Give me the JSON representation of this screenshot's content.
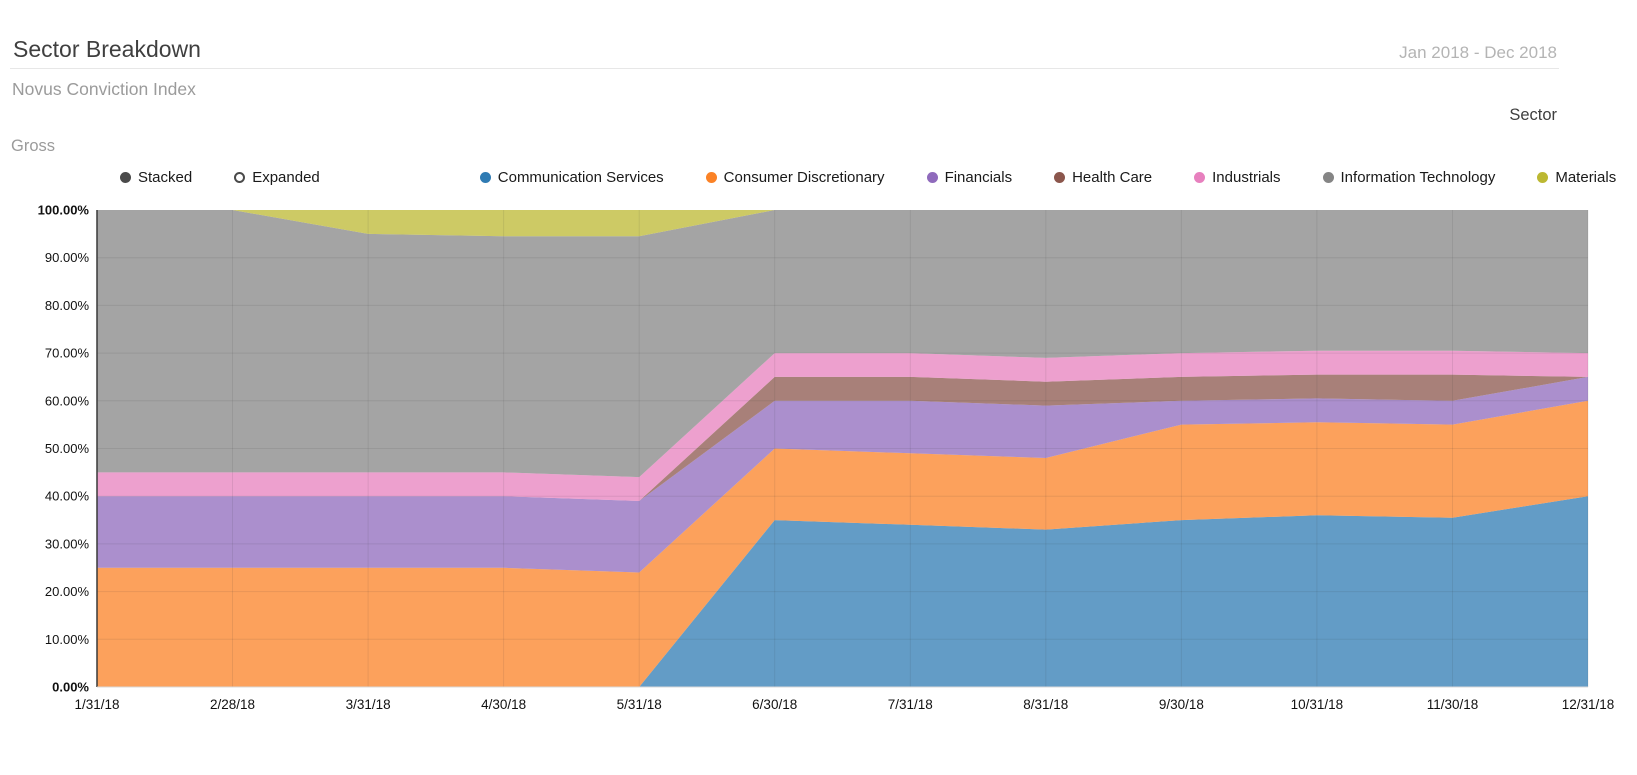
{
  "header": {
    "title": "Sector Breakdown",
    "date_range": "Jan 2018 - Dec 2018",
    "subtitle": "Novus Conviction Index"
  },
  "labels": {
    "gross": "Gross",
    "sector": "Sector"
  },
  "legend": {
    "mode_color": "#4a4a4a",
    "modes": [
      {
        "label": "Stacked",
        "selected": true
      },
      {
        "label": "Expanded",
        "selected": false
      }
    ]
  },
  "chart_data": {
    "type": "area",
    "stacking": "percent",
    "title": "Sector Breakdown",
    "subtitle": "Novus Conviction Index",
    "xlabel": "",
    "ylabel": "Gross",
    "ylim": [
      0,
      100
    ],
    "grid": true,
    "legend_position": "top",
    "categories": [
      "1/31/18",
      "2/28/18",
      "3/31/18",
      "4/30/18",
      "5/31/18",
      "6/30/18",
      "7/31/18",
      "8/31/18",
      "9/30/18",
      "10/31/18",
      "11/30/18",
      "12/31/18"
    ],
    "y_ticks": [
      {
        "label": "100.00%",
        "value": 100,
        "bold": true
      },
      {
        "label": "90.00%",
        "value": 90,
        "bold": false
      },
      {
        "label": "80.00%",
        "value": 80,
        "bold": false
      },
      {
        "label": "70.00%",
        "value": 70,
        "bold": false
      },
      {
        "label": "60.00%",
        "value": 60,
        "bold": false
      },
      {
        "label": "50.00%",
        "value": 50,
        "bold": false
      },
      {
        "label": "40.00%",
        "value": 40,
        "bold": false
      },
      {
        "label": "30.00%",
        "value": 30,
        "bold": false
      },
      {
        "label": "20.00%",
        "value": 20,
        "bold": false
      },
      {
        "label": "10.00%",
        "value": 10,
        "bold": false
      },
      {
        "label": "0.00%",
        "value": 0,
        "bold": true
      }
    ],
    "series": [
      {
        "name": "Communication Services",
        "color": "#2f7bb3",
        "values": [
          0,
          0,
          0,
          0,
          0,
          35,
          34,
          33,
          35,
          36,
          35.5,
          40
        ]
      },
      {
        "name": "Consumer Discretionary",
        "color": "#fb8226",
        "values": [
          25,
          25,
          25,
          25,
          24,
          15,
          15,
          15,
          20,
          19.5,
          19.5,
          20
        ]
      },
      {
        "name": "Financials",
        "color": "#8f6abc",
        "values": [
          15,
          15,
          15,
          15,
          15,
          10,
          11,
          11,
          5,
          5,
          5,
          5
        ]
      },
      {
        "name": "Health Care",
        "color": "#8b564c",
        "values": [
          0,
          0,
          0,
          0,
          0,
          5,
          5,
          5,
          5,
          5,
          5.5,
          0
        ]
      },
      {
        "name": "Industrials",
        "color": "#e780be",
        "values": [
          5,
          5,
          5,
          5,
          5,
          5,
          5,
          5,
          5,
          5,
          5,
          5
        ]
      },
      {
        "name": "Information Technology",
        "color": "#858585",
        "values": [
          55,
          55,
          50,
          49.5,
          50.5,
          30,
          30,
          31,
          30,
          29.5,
          29.5,
          30
        ]
      },
      {
        "name": "Materials",
        "color": "#bcb832",
        "values": [
          0,
          0,
          5,
          5.5,
          5.5,
          0,
          0,
          0,
          0,
          0,
          0,
          0
        ]
      }
    ]
  }
}
